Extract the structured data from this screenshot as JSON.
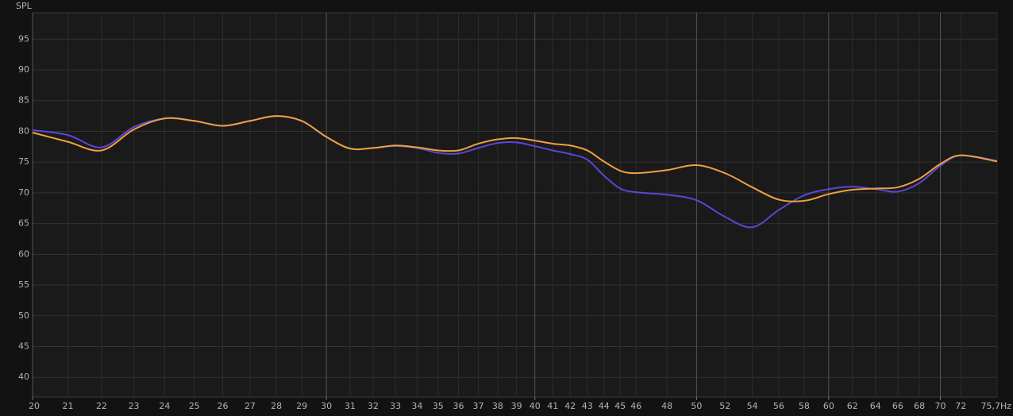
{
  "chart_data": {
    "type": "line",
    "y_label": "SPL",
    "x_scale": "log",
    "grid": true,
    "x": [
      20,
      21,
      22,
      23,
      24,
      25,
      26,
      27,
      28,
      29,
      30,
      31,
      32,
      33,
      34,
      35,
      36,
      37,
      38,
      39,
      40,
      41,
      42,
      43,
      44,
      45,
      46,
      48,
      50,
      52,
      54,
      56,
      58,
      60,
      62,
      64,
      66,
      68,
      70,
      72,
      75.7
    ],
    "series": [
      {
        "color": "#5848d8",
        "values": [
          80.2,
          79.4,
          77.4,
          80.7,
          82.1,
          81.7,
          80.9,
          81.7,
          82.5,
          81.7,
          79.1,
          77.2,
          77.3,
          77.6,
          77.3,
          76.5,
          76.4,
          77.3,
          78.1,
          78.2,
          77.6,
          76.9,
          76.3,
          75.4,
          72.8,
          70.7,
          70.1,
          69.7,
          68.8,
          66.1,
          64.4,
          67.2,
          69.6,
          70.6,
          71.0,
          70.6,
          70.2,
          71.6,
          74.4,
          76.1,
          75.2
        ]
      },
      {
        "color": "#f0a040",
        "values": [
          79.8,
          78.3,
          76.9,
          80.3,
          82.1,
          81.7,
          80.9,
          81.7,
          82.5,
          81.7,
          79.1,
          77.2,
          77.3,
          77.7,
          77.4,
          76.9,
          76.9,
          78.0,
          78.7,
          78.9,
          78.5,
          78.0,
          77.7,
          76.9,
          75.1,
          73.6,
          73.2,
          73.7,
          74.5,
          73.2,
          70.9,
          68.9,
          68.7,
          69.8,
          70.5,
          70.7,
          70.9,
          72.3,
          74.7,
          76.1,
          75.1
        ]
      }
    ],
    "xlim": [
      20,
      75.7
    ],
    "ylim": [
      36.8,
      99.3
    ],
    "xticks": [
      20,
      21,
      22,
      23,
      24,
      25,
      26,
      27,
      28,
      29,
      30,
      31,
      32,
      33,
      34,
      35,
      36,
      37,
      38,
      39,
      40,
      41,
      42,
      43,
      44,
      45,
      46,
      48,
      50,
      52,
      54,
      56,
      58,
      60,
      62,
      64,
      66,
      68,
      70,
      72,
      {
        "value": 75.7,
        "label": "75,7Hz"
      }
    ],
    "major_xticks": [
      20,
      30,
      40,
      50,
      60,
      70
    ],
    "yticks": [
      40,
      45,
      50,
      55,
      60,
      65,
      70,
      75,
      80,
      85,
      90,
      95
    ]
  }
}
